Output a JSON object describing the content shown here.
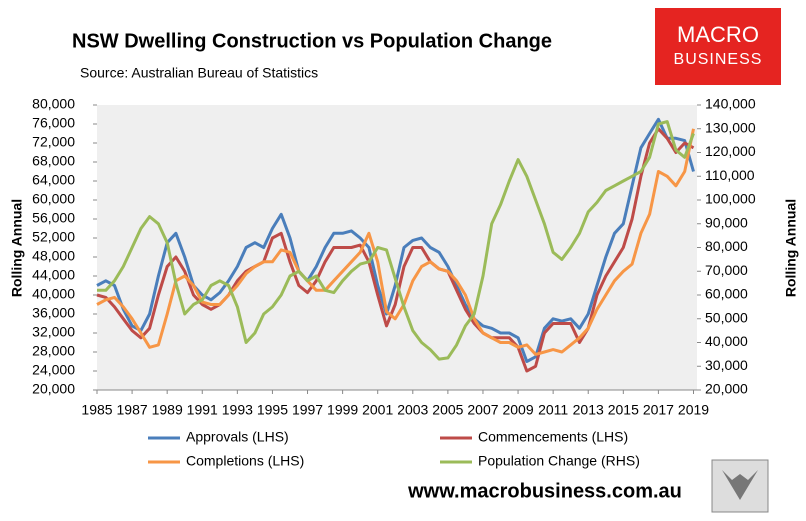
{
  "chart_data": {
    "type": "line",
    "title": "NSW Dwelling Construction vs Population Change",
    "subtitle": "Source: Australian Bureau of Statistics",
    "y_label": "Rolling Annual",
    "y2_label": "Rolling Annual",
    "logo": [
      "MACRO",
      "BUSINESS"
    ],
    "footer": "www.macrobusiness.com.au",
    "x": [
      1985,
      1985.5,
      1986,
      1986.5,
      1987,
      1987.5,
      1988,
      1988.5,
      1989,
      1989.5,
      1990,
      1990.5,
      1991,
      1991.5,
      1992,
      1992.5,
      1993,
      1993.5,
      1994,
      1994.5,
      1995,
      1995.5,
      1996,
      1996.5,
      1997,
      1997.5,
      1998,
      1998.5,
      1999,
      1999.5,
      2000,
      2000.5,
      2001,
      2001.5,
      2002,
      2002.5,
      2003,
      2003.5,
      2004,
      2004.5,
      2005,
      2005.5,
      2006,
      2006.5,
      2007,
      2007.5,
      2008,
      2008.5,
      2009,
      2009.5,
      2010,
      2010.5,
      2011,
      2011.5,
      2012,
      2012.5,
      2013,
      2013.5,
      2014,
      2014.5,
      2015,
      2015.5,
      2016,
      2016.5,
      2017,
      2017.5,
      2018,
      2018.5,
      2019
    ],
    "xlim": [
      1985,
      2019.2
    ],
    "xticks": [
      1985,
      1987,
      1989,
      1991,
      1993,
      1995,
      1997,
      1999,
      2001,
      2003,
      2005,
      2007,
      2009,
      2011,
      2013,
      2015,
      2017,
      2019
    ],
    "ylim": [
      20000,
      80000
    ],
    "yticks": [
      {
        "value": 20000,
        "label": "20,000"
      },
      {
        "value": 24000,
        "label": "24,000"
      },
      {
        "value": 28000,
        "label": "28,000"
      },
      {
        "value": 32000,
        "label": "32,000"
      },
      {
        "value": 36000,
        "label": "36,000"
      },
      {
        "value": 40000,
        "label": "40,000"
      },
      {
        "value": 44000,
        "label": "44,000"
      },
      {
        "value": 48000,
        "label": "48,000"
      },
      {
        "value": 52000,
        "label": "52,000"
      },
      {
        "value": 56000,
        "label": "56,000"
      },
      {
        "value": 60000,
        "label": "60,000"
      },
      {
        "value": 64000,
        "label": "64,000"
      },
      {
        "value": 68000,
        "label": "68,000"
      },
      {
        "value": 72000,
        "label": "72,000"
      },
      {
        "value": 76000,
        "label": "76,000"
      },
      {
        "value": 80000,
        "label": "80,000"
      }
    ],
    "y2lim": [
      20000,
      140000
    ],
    "y2ticks": [
      {
        "value": 20000,
        "label": "20,000"
      },
      {
        "value": 30000,
        "label": "30,000"
      },
      {
        "value": 40000,
        "label": "40,000"
      },
      {
        "value": 50000,
        "label": "50,000"
      },
      {
        "value": 60000,
        "label": "60,000"
      },
      {
        "value": 70000,
        "label": "70,000"
      },
      {
        "value": 80000,
        "label": "80,000"
      },
      {
        "value": 90000,
        "label": "90,000"
      },
      {
        "value": 100000,
        "label": "100,000"
      },
      {
        "value": 110000,
        "label": "110,000"
      },
      {
        "value": 120000,
        "label": "120,000"
      },
      {
        "value": 130000,
        "label": "130,000"
      },
      {
        "value": 140000,
        "label": "140,000"
      }
    ],
    "legend": "bottom",
    "series": [
      {
        "name": "Approvals (LHS)",
        "color": "#4a7ebb",
        "values": [
          42000,
          43000,
          42000,
          37000,
          33500,
          32500,
          36000,
          44000,
          51000,
          53000,
          48000,
          42000,
          40000,
          39000,
          40500,
          43000,
          46000,
          50000,
          51000,
          50000,
          54000,
          57000,
          52000,
          45000,
          43000,
          46000,
          50000,
          53000,
          53000,
          53500,
          52000,
          50000,
          42000,
          36000,
          42000,
          50000,
          51500,
          52000,
          50000,
          49000,
          46000,
          42000,
          38000,
          35000,
          33500,
          33000,
          32000,
          32000,
          31000,
          26000,
          27000,
          33000,
          35000,
          34500,
          35000,
          33000,
          36000,
          42000,
          48000,
          53000,
          55000,
          63000,
          71000,
          74000,
          77000,
          73000,
          73000,
          72500,
          66000
        ]
      },
      {
        "name": "Commencements (LHS)",
        "color": "#be4b48",
        "values": [
          40000,
          39500,
          37500,
          35000,
          32500,
          31000,
          33000,
          40000,
          46000,
          48000,
          45000,
          40000,
          38000,
          37000,
          38000,
          40000,
          43000,
          45000,
          46000,
          47000,
          52000,
          53000,
          47000,
          42000,
          40500,
          43000,
          47000,
          50000,
          50000,
          50000,
          50500,
          47000,
          40000,
          33500,
          38000,
          46000,
          50000,
          50000,
          47000,
          45500,
          45000,
          41000,
          37000,
          34000,
          32000,
          31000,
          31000,
          31000,
          29000,
          24000,
          25000,
          32000,
          34000,
          34000,
          34000,
          30000,
          33000,
          40000,
          44000,
          47000,
          50000,
          56000,
          65000,
          72000,
          75000,
          73000,
          70000,
          72000,
          71000
        ]
      },
      {
        "name": "Completions (LHS)",
        "color": "#f79646",
        "values": [
          38000,
          39000,
          39500,
          37500,
          35000,
          32000,
          29000,
          29500,
          36000,
          43000,
          44000,
          42000,
          38500,
          38000,
          38000,
          40000,
          42000,
          44500,
          46000,
          47000,
          47000,
          49500,
          49000,
          45000,
          43000,
          41000,
          41000,
          43000,
          45000,
          47000,
          49000,
          53000,
          47000,
          36500,
          35000,
          38000,
          43000,
          46000,
          47000,
          45500,
          45000,
          43000,
          40000,
          35000,
          32000,
          31000,
          30000,
          30000,
          29000,
          29500,
          27500,
          28000,
          28500,
          28000,
          29500,
          31000,
          33000,
          37000,
          40000,
          43000,
          45000,
          46500,
          53000,
          57000,
          66000,
          65000,
          63000,
          66000,
          75000
        ]
      },
      {
        "name": "Population Change (RHS)",
        "color": "#9bbb59",
        "axis": "y2",
        "values": [
          62000,
          62000,
          66000,
          72000,
          80000,
          88000,
          93000,
          90000,
          82000,
          65000,
          52000,
          56000,
          58000,
          64000,
          66000,
          64000,
          55000,
          40000,
          44000,
          52000,
          55000,
          60000,
          68000,
          70000,
          66000,
          68000,
          62000,
          61000,
          66000,
          70000,
          73000,
          74000,
          80000,
          79000,
          67000,
          55000,
          45000,
          40000,
          37000,
          33000,
          33500,
          39000,
          47000,
          52000,
          68000,
          90000,
          98000,
          108000,
          117000,
          110000,
          100000,
          90000,
          78000,
          75000,
          80000,
          86000,
          95000,
          99000,
          104000,
          106000,
          108000,
          110000,
          112000,
          118000,
          132000,
          133000,
          121000,
          118000,
          128000
        ]
      }
    ]
  }
}
